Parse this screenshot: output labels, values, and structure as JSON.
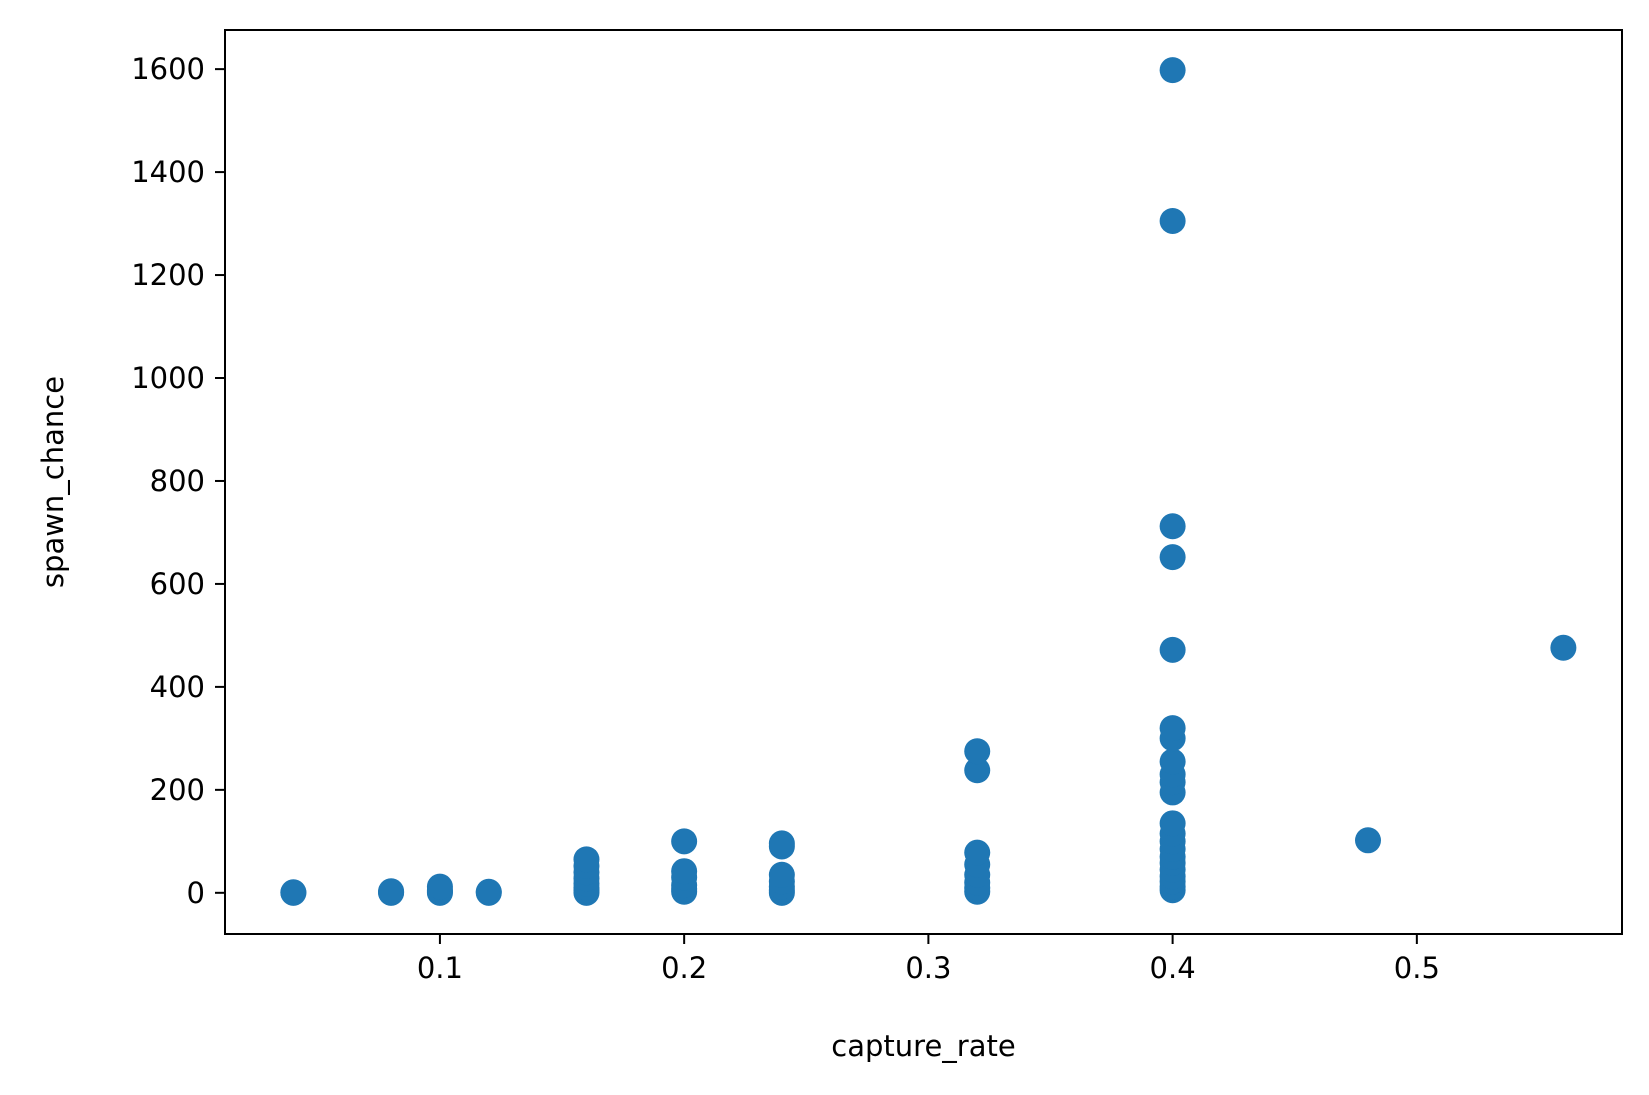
{
  "chart_data": {
    "type": "scatter",
    "title": "",
    "xlabel": "capture_rate",
    "ylabel": "spawn_chance",
    "xlim": [
      0.012,
      0.584
    ],
    "ylim": [
      -80,
      1676
    ],
    "x_ticks": [
      0.1,
      0.2,
      0.3,
      0.4,
      0.5
    ],
    "x_tick_labels": [
      "0.1",
      "0.2",
      "0.3",
      "0.4",
      "0.5"
    ],
    "y_ticks": [
      0,
      200,
      400,
      600,
      800,
      1000,
      1200,
      1400,
      1600
    ],
    "y_tick_labels": [
      "0",
      "200",
      "400",
      "600",
      "800",
      "1000",
      "1200",
      "1400",
      "1600"
    ],
    "grid": false,
    "legend": "none",
    "colors": {
      "marker": "#1f77b4",
      "axis": "#000000",
      "background": "#ffffff"
    },
    "series": [
      {
        "points": [
          [
            0.04,
            0
          ],
          [
            0.04,
            1
          ],
          [
            0.08,
            0
          ],
          [
            0.08,
            1
          ],
          [
            0.08,
            3
          ],
          [
            0.1,
            0
          ],
          [
            0.1,
            2
          ],
          [
            0.1,
            5
          ],
          [
            0.1,
            12
          ],
          [
            0.12,
            0
          ],
          [
            0.12,
            2
          ],
          [
            0.16,
            0
          ],
          [
            0.16,
            5
          ],
          [
            0.16,
            10
          ],
          [
            0.16,
            18
          ],
          [
            0.16,
            28
          ],
          [
            0.16,
            40
          ],
          [
            0.16,
            52
          ],
          [
            0.16,
            65
          ],
          [
            0.2,
            2
          ],
          [
            0.2,
            8
          ],
          [
            0.2,
            15
          ],
          [
            0.2,
            30
          ],
          [
            0.2,
            42
          ],
          [
            0.2,
            100
          ],
          [
            0.24,
            0
          ],
          [
            0.24,
            5
          ],
          [
            0.24,
            12
          ],
          [
            0.24,
            22
          ],
          [
            0.24,
            35
          ],
          [
            0.24,
            90
          ],
          [
            0.24,
            96
          ],
          [
            0.32,
            2
          ],
          [
            0.32,
            10
          ],
          [
            0.32,
            20
          ],
          [
            0.32,
            35
          ],
          [
            0.32,
            55
          ],
          [
            0.32,
            78
          ],
          [
            0.32,
            238
          ],
          [
            0.32,
            275
          ],
          [
            0.4,
            5
          ],
          [
            0.4,
            12
          ],
          [
            0.4,
            22
          ],
          [
            0.4,
            32
          ],
          [
            0.4,
            45
          ],
          [
            0.4,
            58
          ],
          [
            0.4,
            70
          ],
          [
            0.4,
            85
          ],
          [
            0.4,
            100
          ],
          [
            0.4,
            115
          ],
          [
            0.4,
            135
          ],
          [
            0.4,
            195
          ],
          [
            0.4,
            215
          ],
          [
            0.4,
            230
          ],
          [
            0.4,
            255
          ],
          [
            0.4,
            300
          ],
          [
            0.4,
            320
          ],
          [
            0.4,
            472
          ],
          [
            0.4,
            652
          ],
          [
            0.4,
            712
          ],
          [
            0.4,
            1305
          ],
          [
            0.4,
            1598
          ],
          [
            0.48,
            102
          ],
          [
            0.56,
            476
          ]
        ]
      }
    ]
  }
}
